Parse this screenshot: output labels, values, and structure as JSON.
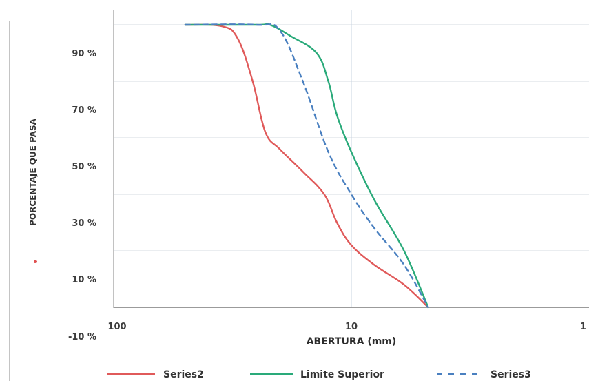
{
  "chart_data": {
    "type": "line",
    "title": "",
    "xlabel": "ABERTURA (mm)",
    "ylabel": "PORCENTAJE QUE PASA",
    "x_scale": "log",
    "x_reversed": true,
    "xlim": [
      100,
      1
    ],
    "ylim": [
      -10,
      100
    ],
    "x_tick_labels": [
      "100",
      "10",
      "1"
    ],
    "y_tick_labels": [
      "90 %",
      "70 %",
      "50 %",
      "30 %",
      "10 %",
      "-10 %"
    ],
    "y_tick_values": [
      90,
      70,
      50,
      30,
      10,
      -10
    ],
    "grid": true,
    "legend_position": "bottom",
    "series": [
      {
        "name": "Series2",
        "color": "#e05a5a",
        "dash": "solid",
        "x": [
          50,
          35,
          30,
          26,
          23,
          20,
          16,
          13,
          11.5,
          10,
          8,
          6,
          4.75
        ],
        "y": [
          100,
          99.5,
          95,
          80,
          62,
          56,
          48,
          40,
          30,
          22,
          15,
          8,
          0
        ]
      },
      {
        "name": "Limite Superior",
        "color": "#2aaa7a",
        "dash": "solid",
        "x": [
          50,
          25,
          22,
          18,
          14,
          12.5,
          11.5,
          10,
          8,
          6,
          4.75
        ],
        "y": [
          100,
          100,
          100,
          96,
          90,
          80,
          68,
          55,
          38,
          20,
          0
        ]
      },
      {
        "name": "Series3",
        "color": "#4a80c0",
        "dash": "dashed",
        "x": [
          50,
          25,
          20,
          16,
          12.5,
          10,
          8,
          6,
          4.75
        ],
        "y": [
          100,
          100,
          98,
          80,
          55,
          40,
          28,
          15,
          0
        ]
      }
    ],
    "side_marker": "•"
  }
}
